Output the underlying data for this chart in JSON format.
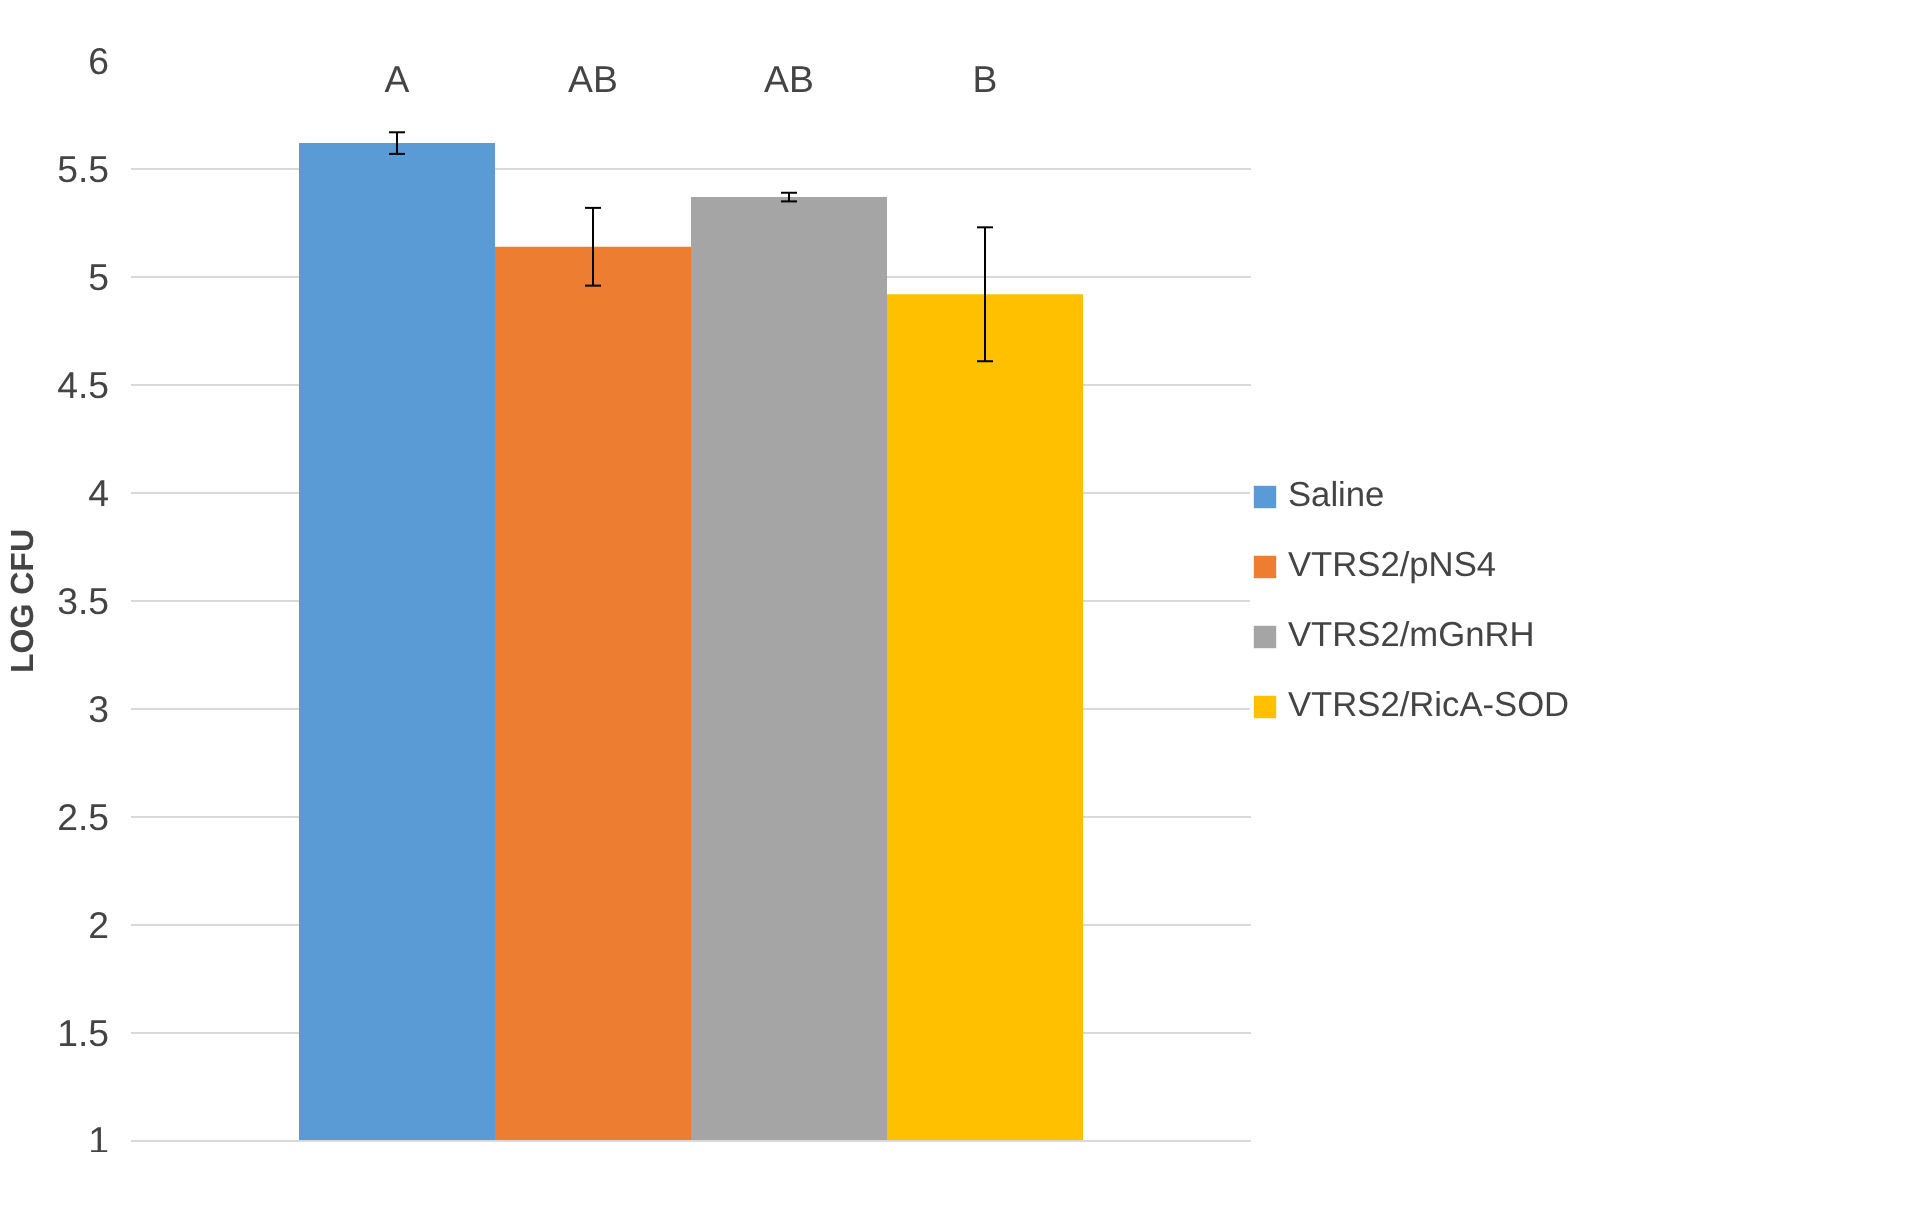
{
  "chart_data": {
    "type": "bar",
    "categories": [
      null
    ],
    "ylabel": "LOG CFU",
    "ylim": [
      1,
      6
    ],
    "yticks": [
      1,
      1.5,
      2,
      2.5,
      3,
      3.5,
      4,
      4.5,
      5,
      5.5,
      6
    ],
    "grid": "y",
    "legend": "right",
    "series": [
      {
        "name": "Saline",
        "color": "#5b9bd5",
        "values": [
          5.62
        ],
        "errors": [
          0.05
        ]
      },
      {
        "name": "VTRS2/pNS4",
        "color": "#ed7d31",
        "values": [
          5.14
        ],
        "errors": [
          0.18
        ]
      },
      {
        "name": "VTRS2/mGnRH",
        "color": "#a5a5a5",
        "values": [
          5.37
        ],
        "errors": [
          0.02
        ]
      },
      {
        "name": "VTRS2/RicA-SOD",
        "color": "#ffc000",
        "values": [
          4.92
        ],
        "errors": [
          0.31
        ]
      }
    ],
    "annotations": [
      "A",
      "AB",
      "AB",
      "B"
    ]
  }
}
